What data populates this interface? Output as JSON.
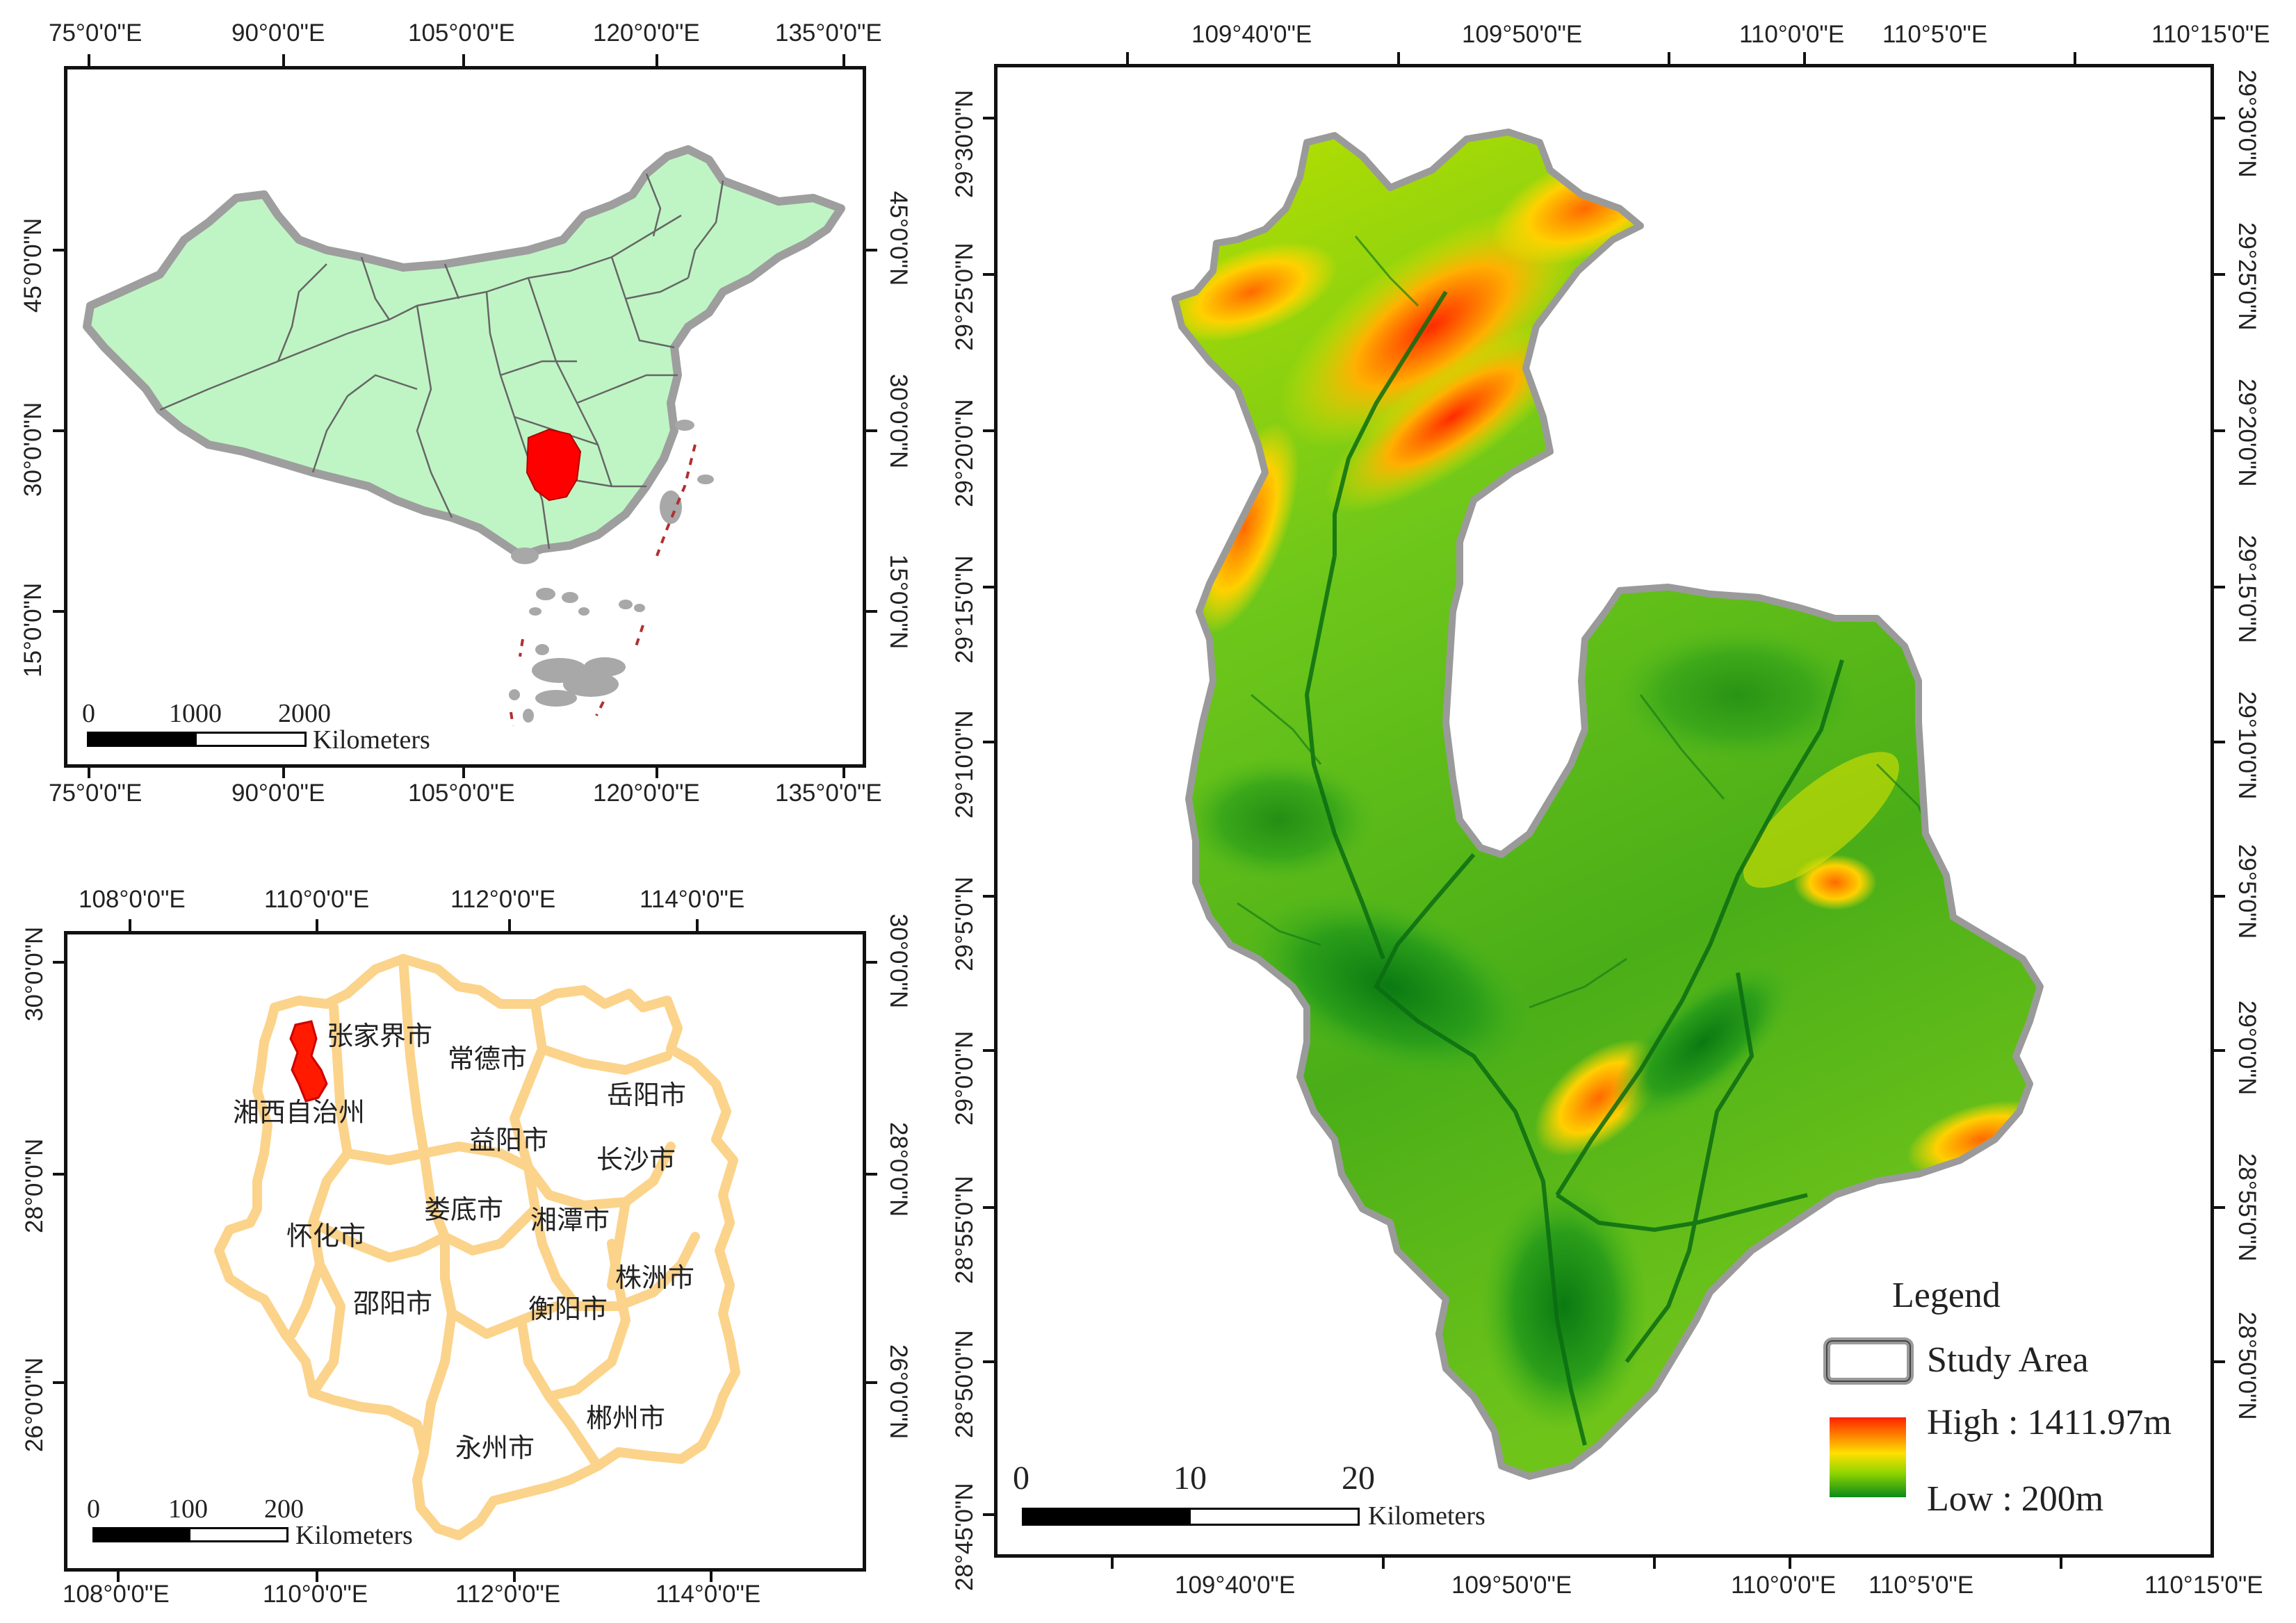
{
  "china_map": {
    "top_lon_labels": [
      "75°0'0\"E",
      "90°0'0\"E",
      "105°0'0\"E",
      "120°0'0\"E",
      "135°0'0\"E"
    ],
    "bottom_lon_labels": [
      "75°0'0\"E",
      "90°0'0\"E",
      "105°0'0\"E",
      "120°0'0\"E",
      "135°0'0\"E"
    ],
    "left_lat_labels": [
      "45°0'0\"N",
      "30°0'0\"N",
      "15°0'0\"N"
    ],
    "right_lat_labels": [
      "45°0'0\"N",
      "30°0'0\"N",
      "15°0'0\"N"
    ],
    "scale": {
      "labels": [
        "0",
        "1000",
        "2000"
      ],
      "unit": "Kilometers"
    },
    "colors": {
      "land": "#bff5c4",
      "highlight": "#ff0000",
      "outline": "#9e9e9e"
    }
  },
  "hunan_map": {
    "top_lon_labels": [
      "108°0'0\"E",
      "110°0'0\"E",
      "112°0'0\"E",
      "114°0'0\"E"
    ],
    "bottom_lon_labels": [
      "108°0'0\"E",
      "110°0'0\"E",
      "112°0'0\"E",
      "114°0'0\"E"
    ],
    "left_lat_labels": [
      "30°0'0\"N",
      "28°0'0\"N",
      "26°0'0\"N"
    ],
    "right_lat_labels": [
      "30°0'0\"N",
      "28°0'0\"N",
      "26°0'0\"N"
    ],
    "cities": [
      "张家界市",
      "常德市",
      "湘西自治州",
      "岳阳市",
      "益阳市",
      "长沙市",
      "娄底市",
      "湘潭市",
      "怀化市",
      "株洲市",
      "邵阳市",
      "衡阳市",
      "郴州市",
      "永州市"
    ],
    "scale": {
      "labels": [
        "0",
        "100",
        "200"
      ],
      "unit": "Kilometers"
    },
    "colors": {
      "boundary": "#fbd38a",
      "highlight": "#ff1a00"
    }
  },
  "dem_map": {
    "top_lon_labels": [
      "109°40'0\"E",
      "109°50'0\"E",
      "110°0'0\"E",
      "110°5'0\"E",
      "110°15'0\"E"
    ],
    "bottom_lon_labels": [
      "109°40'0\"E",
      "109°50'0\"E",
      "110°0'0\"E",
      "110°5'0\"E",
      "110°15'0\"E"
    ],
    "left_lat_labels": [
      "29°30'0\"N",
      "29°25'0\"N",
      "29°20'0\"N",
      "29°15'0\"N",
      "29°10'0\"N",
      "29°5'0\"N",
      "29°0'0\"N",
      "28°55'0\"N",
      "28°50'0\"N",
      "28°45'0\"N"
    ],
    "right_lat_labels": [
      "29°30'0\"N",
      "29°25'0\"N",
      "29°20'0\"N",
      "29°15'0\"N",
      "29°10'0\"N",
      "29°5'0\"N",
      "29°0'0\"N",
      "28°55'0\"N",
      "28°50'0\"N"
    ],
    "scale": {
      "labels": [
        "0",
        "10",
        "20"
      ],
      "unit": "Kilometers"
    },
    "legend": {
      "title": "Legend",
      "study_area": "Study Area",
      "high": "High : 1411.97m",
      "low": "Low : 200m"
    },
    "colors": {
      "high": "#ff2200",
      "mid_high": "#ffe000",
      "mid": "#8fd400",
      "low": "#0a8a1a",
      "outline": "#9a9a9a"
    }
  }
}
